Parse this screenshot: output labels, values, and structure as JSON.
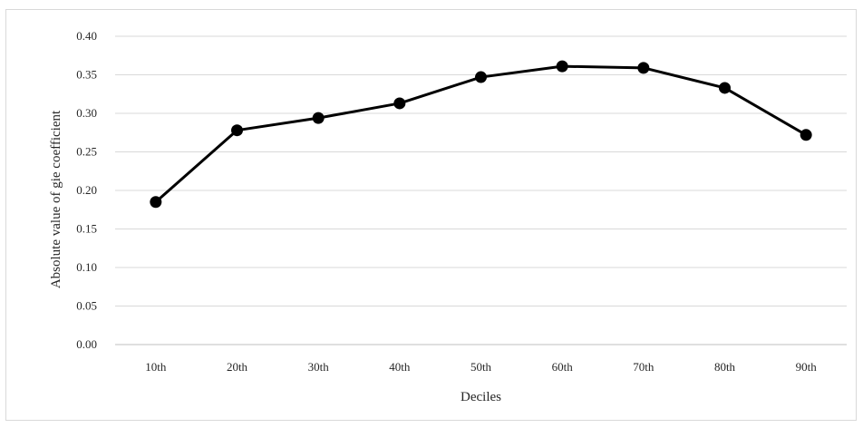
{
  "chart_data": {
    "type": "line",
    "title": "",
    "xlabel": "Deciles",
    "ylabel": "Absolute value of gie coefficient",
    "categories": [
      "10th",
      "20th",
      "30th",
      "40th",
      "50th",
      "60th",
      "70th",
      "80th",
      "90th"
    ],
    "series": [
      {
        "values": [
          0.185,
          0.278,
          0.294,
          0.313,
          0.347,
          0.361,
          0.359,
          0.333,
          0.272
        ]
      }
    ],
    "ylim": [
      0,
      0.4
    ],
    "yticks": [
      "0.00",
      "0.05",
      "0.10",
      "0.15",
      "0.20",
      "0.25",
      "0.30",
      "0.35",
      "0.40"
    ],
    "grid": "horizontal",
    "legend": "none",
    "colors": {
      "line": "#000000",
      "marker": "#000000",
      "grid": "#d9d9d9",
      "axis": "#bfbfbf",
      "text": "#262626"
    }
  }
}
